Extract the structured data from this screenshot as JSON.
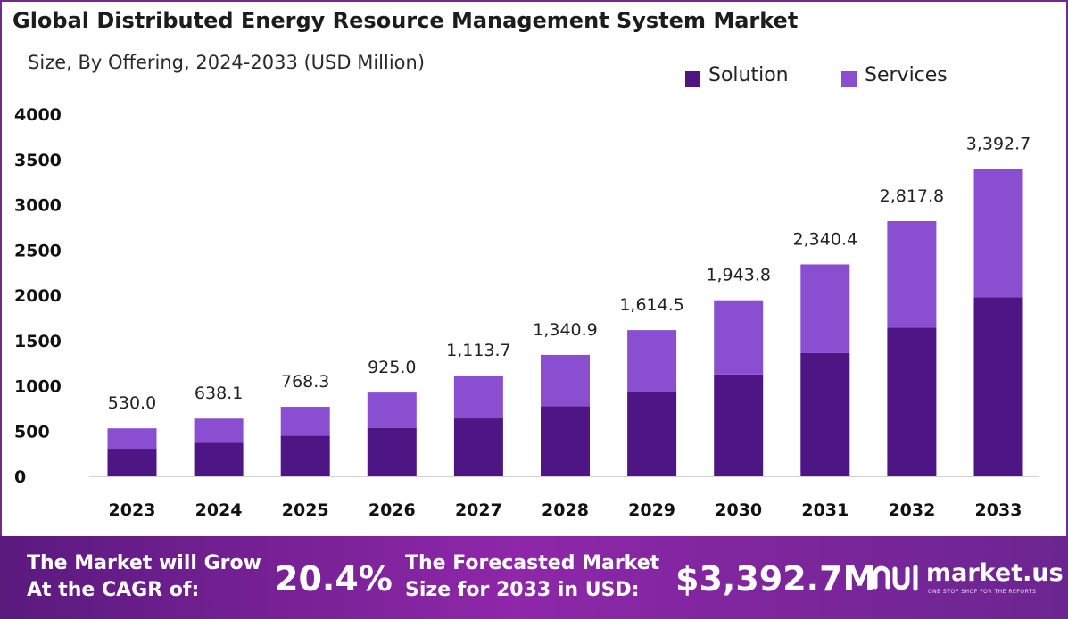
{
  "chart_data": {
    "type": "bar",
    "stacked": true,
    "title": "Global Distributed Energy Resource Management System Market",
    "subtitle": "Size, By Offering, 2024-2033 (USD Million)",
    "categories": [
      "2023",
      "2024",
      "2025",
      "2026",
      "2027",
      "2028",
      "2029",
      "2030",
      "2031",
      "2032",
      "2033"
    ],
    "series": [
      {
        "name": "Solution",
        "color": "#4e1585",
        "values": [
          305,
          370,
          450,
          535,
          640,
          775,
          935,
          1125,
          1360,
          1640,
          1975
        ]
      },
      {
        "name": "Services",
        "color": "#8a4fd0",
        "values": [
          225.0,
          268.1,
          318.3,
          390.0,
          473.7,
          565.9,
          679.5,
          818.8,
          980.4,
          1177.8,
          1417.7
        ]
      }
    ],
    "totals": [
      530.0,
      638.1,
      768.3,
      925.0,
      1113.7,
      1340.9,
      1614.5,
      1943.8,
      2340.4,
      2817.8,
      3392.7
    ],
    "total_labels": [
      "530.0",
      "638.1",
      "768.3",
      "925.0",
      "1,113.7",
      "1,340.9",
      "1,614.5",
      "1,943.8",
      "2,340.4",
      "2,817.8",
      "3,392.7"
    ],
    "ylim": [
      0,
      4000
    ],
    "yticks": [
      "0",
      "500",
      "1000",
      "1500",
      "2000",
      "2500",
      "3000",
      "3500",
      "4000"
    ],
    "grid": false,
    "legend_position": "top-right"
  },
  "banner": {
    "cagr_label_line1": "The Market will Grow",
    "cagr_label_line2": "At the CAGR of:",
    "cagr_value": "20.4%",
    "forecast_label_line1": "The Forecasted Market",
    "forecast_label_line2": "Size for 2033 in USD:",
    "forecast_value": "$3,392.7M"
  },
  "logo": {
    "name": "market.us",
    "tagline": "ONE STOP SHOP FOR THE REPORTS"
  }
}
